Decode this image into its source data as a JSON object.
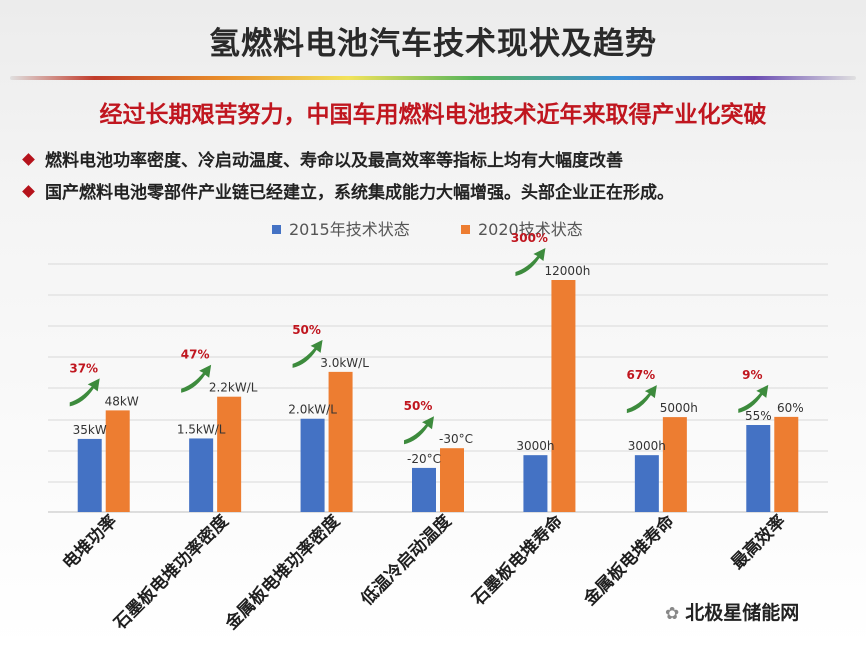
{
  "title": "氢燃料电池汽车技术现状及趋势",
  "subtitle": "经过长期艰苦努力，中国车用燃料电池技术近年来取得产业化突破",
  "bullets": [
    "燃料电池功率密度、冷启动温度、寿命以及最高效率等指标上均有大幅度改善",
    "国产燃料电池零部件产业链已经建立，系统集成能力大幅增强。头部企业正在形成。"
  ],
  "watermark": "北极星储能网",
  "colors": {
    "series_2015": "#4472c4",
    "series_2020": "#ed7d31",
    "pct_label": "#c0161f",
    "arrow": "#3d8b3d"
  },
  "chart_data": {
    "type": "bar",
    "legend_position": "top",
    "grid": true,
    "categories": [
      "电堆功率",
      "石墨板电堆功率密度",
      "金属板电堆功率密度",
      "低温冷启动温度",
      "石墨板电堆寿命",
      "金属板电堆寿命",
      "最高效率"
    ],
    "series": [
      {
        "name": "2015年技术状态",
        "relative_heights": [
          0.315,
          0.317,
          0.402,
          0.19,
          0.245,
          0.245,
          0.375
        ],
        "labels": [
          "35kW",
          "1.5kW/L",
          "2.0kW/L",
          "-20°C",
          "3000h",
          "3000h",
          "55%"
        ]
      },
      {
        "name": "2020技术状态",
        "relative_heights": [
          0.438,
          0.497,
          0.604,
          0.275,
          1.0,
          0.409,
          0.41
        ],
        "labels": [
          "48kW",
          "2.2kW/L",
          "3.0kW/L",
          "-30°C",
          "12000h",
          "5000h",
          "60%"
        ]
      }
    ],
    "improvements": [
      "37%",
      "47%",
      "50%",
      "50%",
      "300%",
      "67%",
      "9%"
    ]
  }
}
